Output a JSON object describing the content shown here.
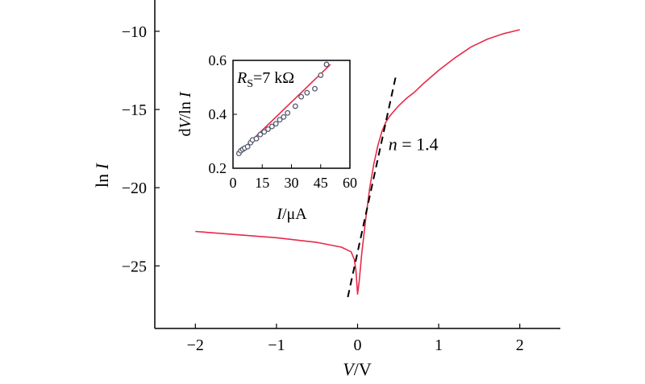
{
  "chart_data": [
    {
      "type": "line",
      "xlabel_italic": "V",
      "xlabel_rest": "/V",
      "ylabel_plain": "ln ",
      "ylabel_italic": "I",
      "xlim": [
        -2.5,
        2.5
      ],
      "ylim": [
        -29,
        -8
      ],
      "xticks": [
        -2,
        -1,
        0,
        1,
        2
      ],
      "xtick_labels": [
        "−2",
        "−1",
        "0",
        "1",
        "2"
      ],
      "yticks": [
        -10,
        -15,
        -20,
        -25
      ],
      "ytick_labels": [
        "−10",
        "−15",
        "−20",
        "−25"
      ],
      "series": [
        {
          "color": "#e8294a",
          "style": "solid",
          "x": [
            -2.0,
            -1.5,
            -1.0,
            -0.5,
            -0.2,
            -0.08,
            -0.04,
            -0.02,
            0.0,
            0.02,
            0.05,
            0.1,
            0.15,
            0.2,
            0.25,
            0.3,
            0.35,
            0.4,
            0.45,
            0.5,
            0.6,
            0.7,
            0.8,
            1.0,
            1.2,
            1.4,
            1.6,
            1.8,
            2.0
          ],
          "y": [
            -22.8,
            -23.0,
            -23.2,
            -23.5,
            -23.8,
            -24.1,
            -24.6,
            -25.3,
            -26.8,
            -26.0,
            -24.3,
            -22.0,
            -20.0,
            -18.5,
            -17.3,
            -16.4,
            -15.8,
            -15.4,
            -15.1,
            -14.8,
            -14.3,
            -13.9,
            -13.4,
            -12.5,
            -11.7,
            -11.0,
            -10.5,
            -10.15,
            -9.9
          ]
        },
        {
          "color": "#000000",
          "style": "dashed",
          "x": [
            -0.12,
            0.47
          ],
          "y": [
            -27.0,
            -12.9
          ]
        }
      ],
      "annotation": {
        "italic": "n",
        "rest": " = 1.4",
        "x": 0.38,
        "y": -17.6
      }
    },
    {
      "type": "scatter",
      "title_italic": "R",
      "title_sub": "S",
      "title_rest": "=7 kΩ",
      "xlabel_italic": "I",
      "xlabel_rest": "/μA",
      "ylabel_plain": "d",
      "ylabel_italic": "V",
      "ylabel_rest": "/ln ",
      "ylabel_italic2": "I",
      "xlim": [
        0,
        60
      ],
      "ylim": [
        0.2,
        0.6
      ],
      "xticks": [
        0,
        15,
        30,
        45,
        60
      ],
      "xtick_labels": [
        "0",
        "15",
        "30",
        "45",
        "60"
      ],
      "yticks": [
        0.2,
        0.4,
        0.6
      ],
      "ytick_labels": [
        "0.2",
        "0.4",
        "0.6"
      ],
      "points": {
        "x": [
          3,
          4,
          5,
          6,
          7.5,
          9,
          10,
          12,
          14,
          16,
          18,
          20,
          22,
          24,
          26,
          28,
          32,
          35,
          38,
          42,
          45,
          48
        ],
        "y": [
          0.255,
          0.265,
          0.27,
          0.275,
          0.28,
          0.295,
          0.305,
          0.31,
          0.325,
          0.335,
          0.345,
          0.355,
          0.365,
          0.38,
          0.39,
          0.405,
          0.43,
          0.465,
          0.48,
          0.495,
          0.545,
          0.585
        ]
      },
      "fit": {
        "x": [
          2,
          50
        ],
        "y": [
          0.25,
          0.585
        ],
        "color": "#e8294a"
      }
    }
  ]
}
